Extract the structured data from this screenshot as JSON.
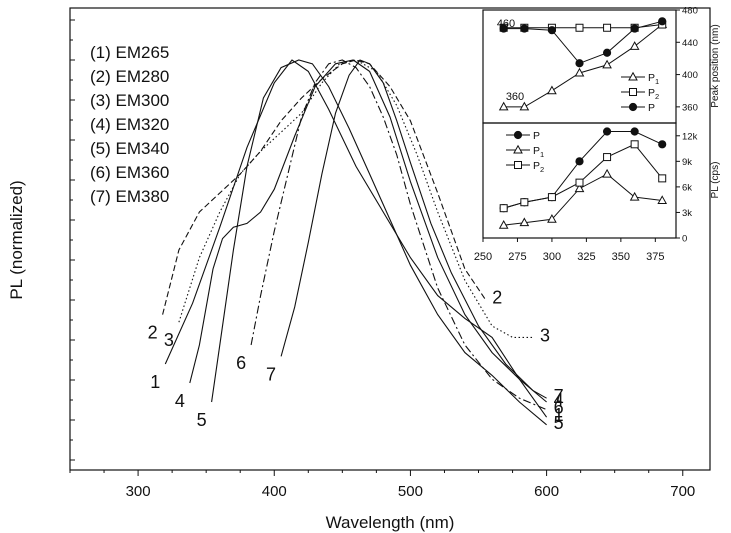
{
  "chart_data": [
    {
      "type": "line",
      "xlabel": "Wavelength (nm)",
      "ylabel": "PL (normalized)",
      "xlim": [
        250,
        720
      ],
      "ylim": [
        0,
        1.0
      ],
      "xticks": [
        300,
        400,
        500,
        600,
        700
      ],
      "grid": false,
      "legend_position": "top-left",
      "legend": [
        "(1) EM265",
        "(2) EM280",
        "(3) EM300",
        "(4) EM320",
        "(5) EM340",
        "(6) EM360",
        "(7) EM380"
      ],
      "series": [
        {
          "name": "(1) EM265",
          "label": "1",
          "dash": "",
          "x": [
            320,
            340,
            360,
            380,
            400,
            413,
            425,
            440,
            460,
            480,
            500,
            520,
            540,
            560,
            580,
            600
          ],
          "y": [
            0.2,
            0.36,
            0.56,
            0.77,
            0.94,
            1.0,
            0.97,
            0.87,
            0.72,
            0.6,
            0.48,
            0.38,
            0.32,
            0.27,
            0.16,
            0.06
          ]
        },
        {
          "name": "(2) EM280",
          "label": "2",
          "dash": "6,3",
          "x": [
            318,
            330,
            345,
            360,
            375,
            390,
            405,
            420,
            435,
            450,
            460,
            470,
            485,
            500,
            520,
            540,
            555
          ],
          "y": [
            0.33,
            0.5,
            0.6,
            0.65,
            0.7,
            0.76,
            0.84,
            0.9,
            0.95,
            0.99,
            1.0,
            0.99,
            0.93,
            0.84,
            0.65,
            0.45,
            0.37
          ]
        },
        {
          "name": "(3) EM300",
          "label": "3",
          "dash": "1.5,2.5",
          "x": [
            330,
            345,
            360,
            375,
            390,
            405,
            420,
            435,
            448,
            460,
            475,
            490,
            505,
            520,
            540,
            560,
            575,
            590
          ],
          "y": [
            0.31,
            0.48,
            0.6,
            0.7,
            0.76,
            0.81,
            0.86,
            0.94,
            0.99,
            1.0,
            0.97,
            0.88,
            0.75,
            0.6,
            0.42,
            0.3,
            0.27,
            0.27
          ]
        },
        {
          "name": "(4) EM320",
          "label": "4",
          "dash": "",
          "x": [
            338,
            345,
            355,
            362,
            370,
            380,
            390,
            400,
            415,
            430,
            445,
            458,
            470,
            485,
            500,
            520,
            540,
            560,
            580,
            600
          ],
          "y": [
            0.15,
            0.25,
            0.45,
            0.53,
            0.56,
            0.57,
            0.6,
            0.66,
            0.8,
            0.93,
            0.99,
            1.0,
            0.97,
            0.85,
            0.68,
            0.48,
            0.33,
            0.23,
            0.16,
            0.1
          ]
        },
        {
          "name": "(5) EM340",
          "label": "5",
          "dash": "",
          "x": [
            354,
            360,
            370,
            380,
            392,
            405,
            418,
            428,
            440,
            455,
            470,
            485,
            500,
            520,
            540,
            560,
            580,
            600
          ],
          "y": [
            0.1,
            0.25,
            0.5,
            0.72,
            0.9,
            0.98,
            1.0,
            0.99,
            0.93,
            0.82,
            0.7,
            0.58,
            0.46,
            0.33,
            0.23,
            0.17,
            0.1,
            0.04
          ]
        },
        {
          "name": "(6) EM360",
          "label": "6",
          "dash": "8,3,2,3",
          "x": [
            383,
            390,
            400,
            410,
            420,
            430,
            440,
            450,
            460,
            470,
            480,
            490,
            500,
            520,
            540,
            560,
            580,
            600
          ],
          "y": [
            0.25,
            0.38,
            0.55,
            0.7,
            0.85,
            0.94,
            0.99,
            1.0,
            0.98,
            0.93,
            0.85,
            0.75,
            0.62,
            0.4,
            0.25,
            0.16,
            0.11,
            0.08
          ]
        },
        {
          "name": "(7) EM380",
          "label": "7",
          "dash": "",
          "x": [
            405,
            415,
            425,
            435,
            445,
            455,
            463,
            470,
            480,
            490,
            500,
            515,
            530,
            550,
            570,
            590,
            600
          ],
          "y": [
            0.22,
            0.35,
            0.52,
            0.7,
            0.86,
            0.96,
            1.0,
            0.99,
            0.94,
            0.84,
            0.73,
            0.57,
            0.44,
            0.3,
            0.2,
            0.13,
            0.11
          ]
        }
      ]
    },
    {
      "type": "line",
      "xlabel": "",
      "ylabel": "Peak position (nm)",
      "xlim": [
        250,
        390
      ],
      "ylim": [
        340,
        480
      ],
      "yticks": [
        360,
        400,
        440,
        480
      ],
      "annotations": [
        "460",
        "360"
      ],
      "legend_position": "bottom-right",
      "series": [
        {
          "name": "P1",
          "marker": "triangle",
          "x": [
            265,
            280,
            300,
            320,
            340,
            360,
            380
          ],
          "y": [
            360,
            360,
            380,
            402,
            412,
            435,
            462
          ]
        },
        {
          "name": "P2",
          "marker": "square",
          "x": [
            265,
            280,
            300,
            320,
            340,
            360,
            380
          ],
          "y": [
            458,
            458,
            458,
            458,
            458,
            458,
            462
          ]
        },
        {
          "name": "P",
          "marker": "circle",
          "x": [
            265,
            280,
            300,
            320,
            340,
            360,
            380
          ],
          "y": [
            457,
            457,
            455,
            414,
            427,
            457,
            466
          ]
        }
      ]
    },
    {
      "type": "line",
      "xlabel": "",
      "ylabel": "PL (cps)",
      "xlim": [
        250,
        390
      ],
      "ylim": [
        0,
        13500
      ],
      "xticks": [
        250,
        275,
        300,
        325,
        350,
        375
      ],
      "yticks": [
        0,
        3000,
        6000,
        9000,
        12000
      ],
      "ytick_labels": [
        "0",
        "3k",
        "6k",
        "9k",
        "12k"
      ],
      "legend_position": "top-left",
      "series": [
        {
          "name": "P",
          "marker": "circle",
          "x": [
            265,
            280,
            300,
            320,
            340,
            360,
            380
          ],
          "y": [
            3500,
            4200,
            4800,
            9000,
            12500,
            12500,
            11000
          ]
        },
        {
          "name": "P1",
          "marker": "triangle",
          "x": [
            265,
            280,
            300,
            320,
            340,
            360,
            380
          ],
          "y": [
            1500,
            1800,
            2200,
            5800,
            7500,
            4800,
            4400
          ]
        },
        {
          "name": "P2",
          "marker": "square",
          "x": [
            265,
            280,
            300,
            320,
            340,
            360,
            380
          ],
          "y": [
            3500,
            4200,
            4800,
            6500,
            9500,
            11000,
            7000
          ]
        }
      ]
    }
  ]
}
